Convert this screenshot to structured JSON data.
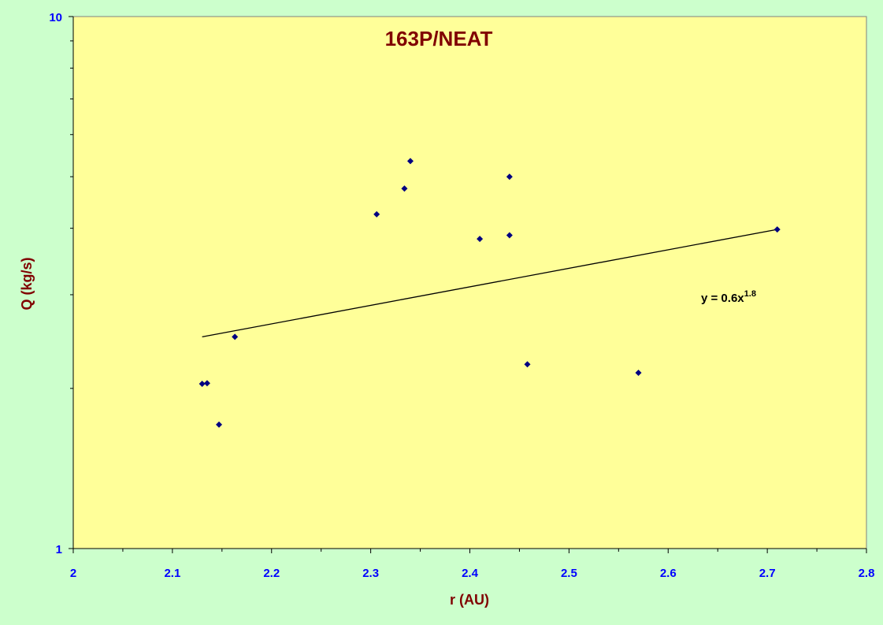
{
  "chart_data": {
    "type": "scatter",
    "title": "163P/NEAT",
    "xlabel": "r (AU)",
    "ylabel": "Q (kg/s)",
    "xlim": [
      2,
      2.8
    ],
    "ylim": [
      1,
      10
    ],
    "yscale": "log",
    "grid": false,
    "x_ticks": [
      "2",
      "2.1",
      "2.2",
      "2.3",
      "2.4",
      "2.5",
      "2.6",
      "2.7",
      "2.8"
    ],
    "y_ticks": [
      "1",
      "10"
    ],
    "points": [
      {
        "x": 2.13,
        "y": 2.04
      },
      {
        "x": 2.135,
        "y": 2.045
      },
      {
        "x": 2.147,
        "y": 1.71
      },
      {
        "x": 2.163,
        "y": 2.5
      },
      {
        "x": 2.306,
        "y": 4.25
      },
      {
        "x": 2.334,
        "y": 4.75
      },
      {
        "x": 2.34,
        "y": 5.35
      },
      {
        "x": 2.41,
        "y": 3.82
      },
      {
        "x": 2.44,
        "y": 5.0
      },
      {
        "x": 2.44,
        "y": 3.88
      },
      {
        "x": 2.458,
        "y": 2.22
      },
      {
        "x": 2.57,
        "y": 2.14
      },
      {
        "x": 2.71,
        "y": 3.98
      }
    ],
    "trendline": {
      "label": "y = 0.6x",
      "exponent_label": "1.8",
      "x_start": 2.13,
      "x_end": 2.71,
      "y_start": 2.5,
      "y_end": 3.98
    },
    "colors": {
      "background": "#ccffcc",
      "plot_area": "#ffff99",
      "marker": "#000080",
      "axis_text": "#0000ff",
      "title_text": "#800000"
    }
  }
}
